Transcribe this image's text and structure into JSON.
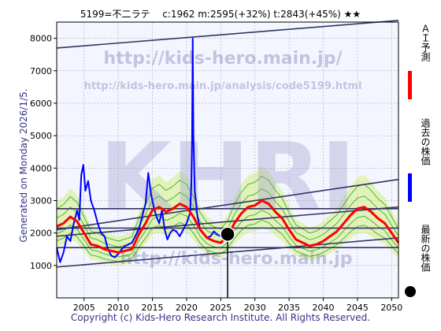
{
  "header": {
    "title": "5199=不二ラテ　 c:1962  m:2595(+32%)  t:2843(+45%)  ★★"
  },
  "side_note": "Generated on Monday 2026/1/5.",
  "footer": {
    "copyright": "Copyright (c) Kids-Hero Research Institute. All Rights Reserved."
  },
  "watermark": {
    "url_large": "http://kids-hero.main.jp/",
    "url_small": "http://kids-hero.main.jp/analysis/code5199.html",
    "logo": "KHRI",
    "url_bottom": "http://kids-hero.main.jp"
  },
  "legend": {
    "items": [
      {
        "label": "ＡＩ予測",
        "color": "#ff0000"
      },
      {
        "label": "過去の株価",
        "color": "#0000ff"
      },
      {
        "label": "最新の株価",
        "color": "#000000"
      }
    ]
  },
  "colors": {
    "past": "#0000ff",
    "prediction": "#ff0000",
    "bands": "#22aa22",
    "band_fill": "#ccee66",
    "trend": "#333366",
    "frame": "#000000"
  },
  "chart_data": {
    "type": "line",
    "title": "5199=不二ラテ　 c:1962  m:2595(+32%)  t:2843(+45%)  ★★",
    "xlim": [
      2001,
      2051
    ],
    "ylim": [
      0,
      8500
    ],
    "x_ticks": [
      2005,
      2010,
      2015,
      2020,
      2025,
      2030,
      2035,
      2040,
      2045,
      2050
    ],
    "y_ticks": [
      1000,
      2000,
      3000,
      4000,
      5000,
      6000,
      7000,
      8000
    ],
    "grid": true,
    "series": [
      {
        "name": "過去の株価",
        "type": "line",
        "points": [
          [
            2001.0,
            1550
          ],
          [
            2001.5,
            1100
          ],
          [
            2002.0,
            1400
          ],
          [
            2002.5,
            1900
          ],
          [
            2003.0,
            1750
          ],
          [
            2003.5,
            2300
          ],
          [
            2004.0,
            2700
          ],
          [
            2004.3,
            2400
          ],
          [
            2004.6,
            3800
          ],
          [
            2004.9,
            4100
          ],
          [
            2005.2,
            3300
          ],
          [
            2005.6,
            3600
          ],
          [
            2006.0,
            3000
          ],
          [
            2006.5,
            2700
          ],
          [
            2007.0,
            2300
          ],
          [
            2007.5,
            2000
          ],
          [
            2008.0,
            1900
          ],
          [
            2008.5,
            1500
          ],
          [
            2009.0,
            1300
          ],
          [
            2009.5,
            1250
          ],
          [
            2010.0,
            1350
          ],
          [
            2010.5,
            1500
          ],
          [
            2011.0,
            1600
          ],
          [
            2011.5,
            1650
          ],
          [
            2012.0,
            1700
          ],
          [
            2012.5,
            1900
          ],
          [
            2013.0,
            2100
          ],
          [
            2013.5,
            2500
          ],
          [
            2014.0,
            2900
          ],
          [
            2014.4,
            3850
          ],
          [
            2014.8,
            3200
          ],
          [
            2015.2,
            2800
          ],
          [
            2015.6,
            2500
          ],
          [
            2016.0,
            2300
          ],
          [
            2016.4,
            2700
          ],
          [
            2016.8,
            2100
          ],
          [
            2017.2,
            1800
          ],
          [
            2017.6,
            2000
          ],
          [
            2018.0,
            2100
          ],
          [
            2018.5,
            2050
          ],
          [
            2019.0,
            1900
          ],
          [
            2019.5,
            2100
          ],
          [
            2020.0,
            2300
          ],
          [
            2020.5,
            2600
          ],
          [
            2020.7,
            3500
          ],
          [
            2020.8,
            4800
          ],
          [
            2020.9,
            8000
          ],
          [
            2021.0,
            5000
          ],
          [
            2021.2,
            3300
          ],
          [
            2021.6,
            2500
          ],
          [
            2022.0,
            2100
          ],
          [
            2022.5,
            1950
          ],
          [
            2023.0,
            1850
          ],
          [
            2023.5,
            1900
          ],
          [
            2024.0,
            2050
          ],
          [
            2024.5,
            1950
          ],
          [
            2025.0,
            1900
          ],
          [
            2025.5,
            1850
          ],
          [
            2025.9,
            1962
          ]
        ]
      },
      {
        "name": "ＡＩ予測",
        "type": "line",
        "points": [
          [
            2001.0,
            2200
          ],
          [
            2002.0,
            2300
          ],
          [
            2003.0,
            2500
          ],
          [
            2004.0,
            2350
          ],
          [
            2005.0,
            2000
          ],
          [
            2006.0,
            1650
          ],
          [
            2007.0,
            1600
          ],
          [
            2008.0,
            1500
          ],
          [
            2009.0,
            1450
          ],
          [
            2010.0,
            1400
          ],
          [
            2011.0,
            1450
          ],
          [
            2012.0,
            1500
          ],
          [
            2013.0,
            1950
          ],
          [
            2014.0,
            2300
          ],
          [
            2015.0,
            2700
          ],
          [
            2016.0,
            2800
          ],
          [
            2017.0,
            2650
          ],
          [
            2018.0,
            2750
          ],
          [
            2019.0,
            2900
          ],
          [
            2020.0,
            2800
          ],
          [
            2021.0,
            2500
          ],
          [
            2022.0,
            2100
          ],
          [
            2023.0,
            1850
          ],
          [
            2024.0,
            1750
          ],
          [
            2025.0,
            1700
          ],
          [
            2026.0,
            1900
          ],
          [
            2027.0,
            2300
          ],
          [
            2028.0,
            2600
          ],
          [
            2029.0,
            2800
          ],
          [
            2030.0,
            2850
          ],
          [
            2031.0,
            3000
          ],
          [
            2032.0,
            2900
          ],
          [
            2033.0,
            2650
          ],
          [
            2034.0,
            2450
          ],
          [
            2035.0,
            2100
          ],
          [
            2036.0,
            1800
          ],
          [
            2037.0,
            1700
          ],
          [
            2038.0,
            1600
          ],
          [
            2039.0,
            1650
          ],
          [
            2040.0,
            1750
          ],
          [
            2041.0,
            1900
          ],
          [
            2042.0,
            2050
          ],
          [
            2043.0,
            2300
          ],
          [
            2044.0,
            2550
          ],
          [
            2045.0,
            2750
          ],
          [
            2046.0,
            2800
          ],
          [
            2047.0,
            2650
          ],
          [
            2048.0,
            2450
          ],
          [
            2049.0,
            2300
          ],
          [
            2050.0,
            2000
          ],
          [
            2051.0,
            1700
          ]
        ]
      },
      {
        "name": "最新の株価",
        "type": "scatter",
        "points": [
          [
            2026.0,
            1962
          ]
        ]
      }
    ],
    "trend_lines": [
      [
        [
          2001,
          7700
        ],
        [
          2051,
          8550
        ]
      ],
      [
        [
          2001,
          2100
        ],
        [
          2051,
          3650
        ]
      ],
      [
        [
          2001,
          2750
        ],
        [
          2051,
          2750
        ]
      ],
      [
        [
          2001,
          2150
        ],
        [
          2051,
          2150
        ]
      ],
      [
        [
          2001,
          1550
        ],
        [
          2051,
          1550
        ]
      ],
      [
        [
          2001,
          1900
        ],
        [
          2051,
          2800
        ]
      ],
      [
        [
          2001,
          950
        ],
        [
          2051,
          1850
        ]
      ]
    ]
  }
}
